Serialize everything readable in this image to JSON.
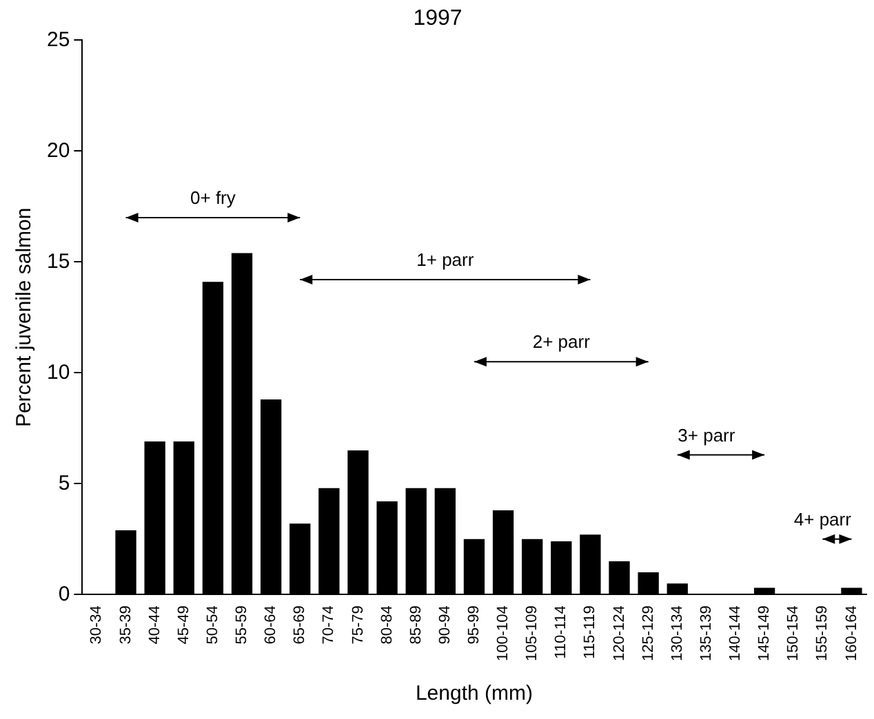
{
  "chart_data": {
    "type": "bar",
    "title": "1997",
    "xlabel": "Length (mm)",
    "ylabel": "Percent juvenile salmon",
    "categories": [
      "30-34",
      "35-39",
      "40-44",
      "45-49",
      "50-54",
      "55-59",
      "60-64",
      "65-69",
      "70-74",
      "75-79",
      "80-84",
      "85-89",
      "90-94",
      "95-99",
      "100-104",
      "105-109",
      "110-114",
      "115-119",
      "120-124",
      "125-129",
      "130-134",
      "135-139",
      "140-144",
      "145-149",
      "150-154",
      "155-159",
      "160-164"
    ],
    "series": [
      {
        "color": "#000000",
        "values": [
          0,
          2.9,
          6.9,
          6.9,
          14.1,
          15.4,
          8.8,
          3.2,
          4.8,
          6.5,
          4.2,
          4.8,
          4.8,
          2.5,
          3.8,
          2.5,
          2.4,
          2.7,
          1.5,
          1.0,
          0.5,
          0,
          0,
          0.3,
          0,
          0,
          0.3
        ]
      },
      {
        "type": "line",
        "color": "#000000",
        "marker": "triangle",
        "x": [
          "35-39",
          "65-69"
        ],
        "values": [
          17,
          17
        ]
      },
      {
        "type": "line",
        "color": "#000000",
        "marker": "triangle",
        "x": [
          "65-69",
          "115-119"
        ],
        "values": [
          14.2,
          14.2
        ]
      },
      {
        "type": "line",
        "color": "#000000",
        "marker": "triangle",
        "x": [
          "95-99",
          "125-129"
        ],
        "values": [
          10.5,
          10.5
        ]
      },
      {
        "type": "line",
        "color": "#000000",
        "marker": "triangle",
        "x": [
          "130-134",
          "145-149"
        ],
        "values": [
          6.3,
          6.3
        ]
      },
      {
        "type": "line",
        "color": "#000000",
        "marker": "triangle",
        "x": [
          "155-159",
          "160-164"
        ],
        "values": [
          2.5,
          2.5
        ]
      }
    ],
    "annotations": [
      {
        "text": "0+ fry",
        "x": "50-54",
        "y": 17
      },
      {
        "text": "1+ parr",
        "x": "90-94",
        "y": 14.2
      },
      {
        "text": "2+ parr",
        "x": "110-114",
        "y": 10.5
      },
      {
        "text": "3+ parr",
        "x": "135-139",
        "y": 6.3
      },
      {
        "text": "4+ parr",
        "x": "155-159",
        "y": 2.5
      }
    ],
    "ylim": [
      0,
      25
    ],
    "yticks": [
      0,
      5,
      10,
      15,
      20,
      25
    ],
    "grid": false,
    "legend": false
  }
}
